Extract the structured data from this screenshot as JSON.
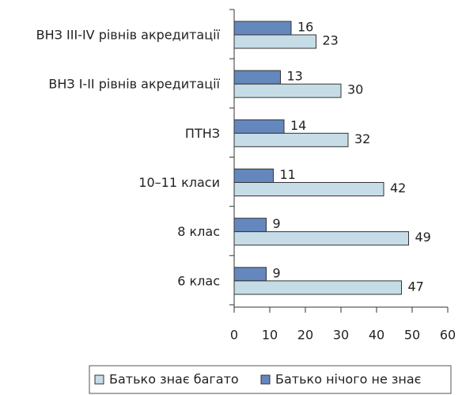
{
  "chart_data": {
    "type": "hbar",
    "categories": [
      "ВНЗ III-IV рівнів акредитації",
      "ВНЗ I-II рівнів акредитації",
      "ПТНЗ",
      "10–11 класи",
      "8 клас",
      "6 клас"
    ],
    "series": [
      {
        "name": "Батько знає багато",
        "color": "#c6dde8",
        "values": [
          23,
          30,
          32,
          42,
          49,
          47
        ]
      },
      {
        "name": "Батько нічого не знає",
        "color": "#6488be",
        "values": [
          16,
          13,
          14,
          11,
          9,
          9
        ]
      }
    ],
    "xlim": [
      0,
      60
    ],
    "xticks": [
      0,
      10,
      20,
      30,
      40,
      50,
      60
    ],
    "legend": "bottom"
  }
}
